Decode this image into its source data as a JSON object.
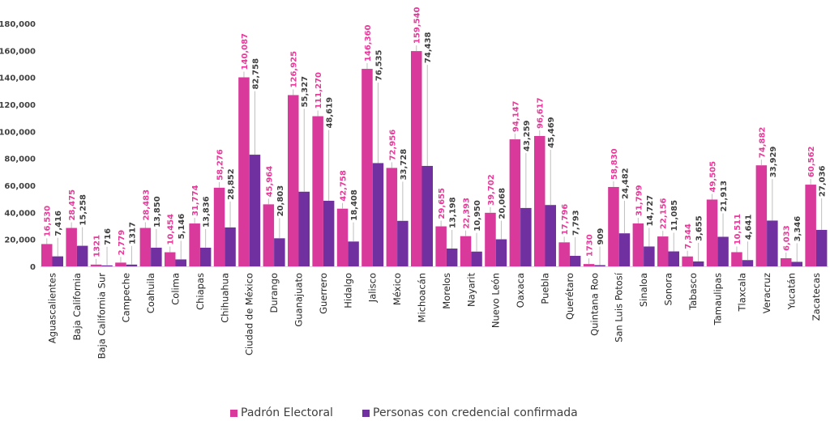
{
  "chart_data": {
    "type": "bar",
    "title": "",
    "xlabel": "",
    "ylabel": "",
    "ylim": [
      0,
      180000
    ],
    "yticks": [
      "0",
      "20,000",
      "40,000",
      "60,000",
      "80,000",
      "100,000",
      "120,000",
      "140,000",
      "160,000",
      "180,000"
    ],
    "grid": false,
    "legend_position": "bottom",
    "categories": [
      "Aguascalientes",
      "Baja California",
      "Baja California Sur",
      "Campeche",
      "Coahuila",
      "Colima",
      "Chiapas",
      "Chihuahua",
      "Ciudad de México",
      "Durango",
      "Guanajuato",
      "Guerrero",
      "Hidalgo",
      "Jalisco",
      "México",
      "Michoacán",
      "Morelos",
      "Nayarit",
      "Nuevo León",
      "Oaxaca",
      "Puebla",
      "Querétaro",
      "Quintana Roo",
      "San Luis Potosí",
      "Sinaloa",
      "Sonora",
      "Tabasco",
      "Tamaulipas",
      "Tlaxcala",
      "Veracruz",
      "Yucatán",
      "Zacatecas"
    ],
    "series": [
      {
        "name": "Padrón Electoral",
        "color": "#d9399a",
        "values": [
          16530,
          28475,
          1321,
          2779,
          28483,
          10454,
          31774,
          58276,
          140087,
          45964,
          126925,
          111270,
          42758,
          146360,
          72956,
          159540,
          29655,
          22393,
          39702,
          94147,
          96617,
          17796,
          1730,
          58830,
          31799,
          22156,
          7344,
          49505,
          10511,
          74882,
          6033,
          60562
        ],
        "labels": [
          "16,530",
          "28,475",
          "1321",
          "2,779",
          "28,483",
          "10,454",
          "31,774",
          "58,276",
          "140,087",
          "45,964",
          "126,925",
          "111,270",
          "42,758",
          "146,360",
          "72,956",
          "159,540",
          "29,655",
          "22,393",
          "39,702",
          "94,147",
          "96,617",
          "17,796",
          "1730",
          "58,830",
          "31,799",
          "22,156",
          "7,344",
          "49,505",
          "10,511",
          "74,882",
          "6,033",
          "60,562"
        ]
      },
      {
        "name": "Personas con credencial confirmada",
        "color": "#7030a0",
        "values": [
          7416,
          15258,
          716,
          1317,
          13850,
          5146,
          13836,
          28852,
          82758,
          20803,
          55327,
          48619,
          18408,
          76535,
          33728,
          74438,
          13198,
          10950,
          20068,
          43259,
          45469,
          7793,
          909,
          24482,
          14727,
          11085,
          3655,
          21913,
          4641,
          33929,
          3346,
          27036
        ],
        "labels": [
          "7,416",
          "15,258",
          "716",
          "1317",
          "13,850",
          "5,146",
          "13,836",
          "28,852",
          "82,758",
          "20,803",
          "55,327",
          "48,619",
          "18,408",
          "76,535",
          "33,728",
          "74,438",
          "13,198",
          "10,950",
          "20,068",
          "43,259",
          "45,469",
          "7,793",
          "909",
          "24,482",
          "14,727",
          "11,085",
          "3,655",
          "21,913",
          "4,641",
          "33,929",
          "3,346",
          "27,036"
        ]
      }
    ]
  }
}
